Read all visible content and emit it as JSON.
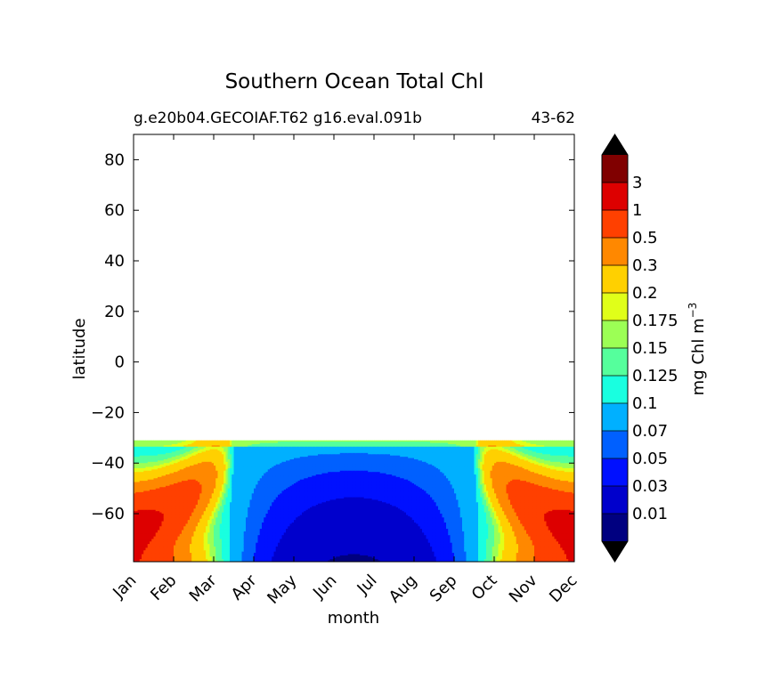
{
  "chart_data": {
    "type": "heatmap",
    "title": "Southern Ocean Total Chl",
    "subtitle_left": "g.e20b04.GECOIAF.T62 g16.eval.091b",
    "subtitle_right": "43-62",
    "xlabel": "month",
    "ylabel": "latitude",
    "x_ticks": [
      "Jan",
      "Feb",
      "Mar",
      "Apr",
      "May",
      "Jun",
      "Jul",
      "Aug",
      "Sep",
      "Oct",
      "Nov",
      "Dec"
    ],
    "xlim": [
      1,
      12
    ],
    "y_ticks": [
      80,
      60,
      40,
      20,
      0,
      -20,
      -40,
      -60
    ],
    "ylim": [
      -79,
      90
    ],
    "data_lat_range": [
      -79,
      -31
    ],
    "colorbar": {
      "label": "mg Chl m",
      "label_sup": "−3",
      "extend": "both",
      "levels": [
        0.01,
        0.03,
        0.05,
        0.07,
        0.1,
        0.125,
        0.15,
        0.175,
        0.2,
        0.3,
        0.5,
        1,
        3
      ],
      "tick_labels": [
        "0.01",
        "0.03",
        "0.05",
        "0.07",
        "0.1",
        "0.125",
        "0.15",
        "0.175",
        "0.2",
        "0.3",
        "0.5",
        "1",
        "3"
      ],
      "colors": [
        "#000080",
        "#0000cc",
        "#0010ff",
        "#0060ff",
        "#00b0ff",
        "#19ffe0",
        "#55ff9c",
        "#9cff55",
        "#e0ff19",
        "#ffd000",
        "#ff8800",
        "#ff4000",
        "#dd0000",
        "#800000"
      ],
      "under_color": "#000000",
      "over_color": "#000000"
    }
  }
}
